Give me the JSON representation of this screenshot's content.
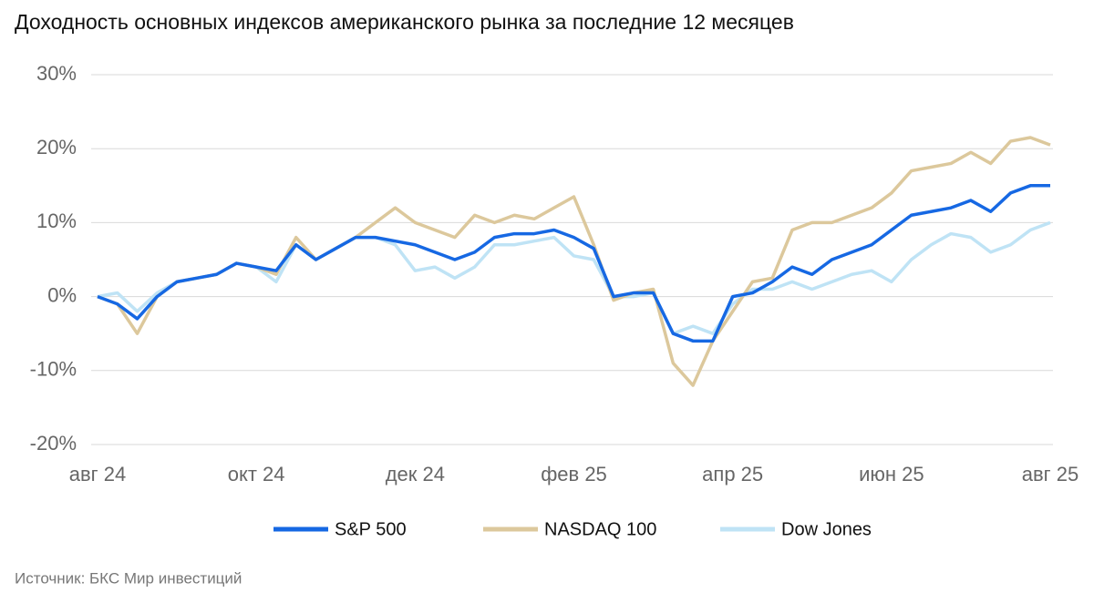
{
  "chart_data": {
    "type": "line",
    "title": "Доходность основных индексов американского рынка за последние 12 месяцев",
    "source": "Источник: БКС Мир инвестиций",
    "categories": [
      "авг 24",
      null,
      null,
      null,
      null,
      null,
      null,
      null,
      "окт 24",
      null,
      null,
      null,
      null,
      null,
      null,
      null,
      "дек 24",
      null,
      null,
      null,
      null,
      null,
      null,
      null,
      "фев 25",
      null,
      null,
      null,
      null,
      null,
      null,
      null,
      "апр 25",
      null,
      null,
      null,
      null,
      null,
      null,
      null,
      "июн 25",
      null,
      null,
      null,
      null,
      null,
      null,
      null,
      "авг 25"
    ],
    "series": [
      {
        "name": "S&P 500",
        "color": "#1668e3",
        "values": [
          0,
          -1,
          -3,
          0,
          2,
          2.5,
          3,
          4.5,
          4,
          3.5,
          7,
          5,
          6.5,
          8,
          8,
          7.5,
          7,
          6,
          5,
          6,
          8,
          8.5,
          8.5,
          9,
          8,
          6.5,
          0,
          0.5,
          0.5,
          -5,
          -6,
          -6,
          0,
          0.5,
          2,
          4,
          3,
          5,
          6,
          7,
          9,
          11,
          11.5,
          12,
          13,
          11.5,
          14,
          15,
          15
        ]
      },
      {
        "name": "NASDAQ 100",
        "color": "#dcc89c",
        "values": [
          0,
          -1,
          -5,
          0,
          2,
          2.5,
          3,
          4.5,
          4,
          3,
          8,
          5,
          6.5,
          8,
          10,
          12,
          10,
          9,
          8,
          11,
          10,
          11,
          10.5,
          12,
          13.5,
          7,
          -0.5,
          0.5,
          1,
          -9,
          -12,
          -6,
          -2,
          2,
          2.5,
          9,
          10,
          10,
          11,
          12,
          14,
          17,
          17.5,
          18,
          19.5,
          18,
          21,
          21.5,
          20.5
        ]
      },
      {
        "name": "Dow Jones",
        "color": "#bfe3f5",
        "values": [
          0,
          0.5,
          -2,
          0.5,
          2,
          2.5,
          3,
          4.5,
          4,
          2,
          7,
          5,
          6.5,
          8,
          8,
          7,
          3.5,
          4,
          2.5,
          4,
          7,
          7,
          7.5,
          8,
          5.5,
          5,
          0,
          0,
          0.5,
          -5,
          -4,
          -5,
          -1,
          1,
          1,
          2,
          1,
          2,
          3,
          3.5,
          2,
          5,
          7,
          8.5,
          8,
          6,
          7,
          9,
          10
        ]
      }
    ],
    "ylim": [
      -20,
      30
    ],
    "yticks": [
      {
        "value": -20,
        "label": "-20%"
      },
      {
        "value": -10,
        "label": "-10%"
      },
      {
        "value": 0,
        "label": "0%"
      },
      {
        "value": 10,
        "label": "10%"
      },
      {
        "value": 20,
        "label": "20%"
      },
      {
        "value": 30,
        "label": "30%"
      }
    ],
    "grid": true,
    "legend": "bottom"
  }
}
